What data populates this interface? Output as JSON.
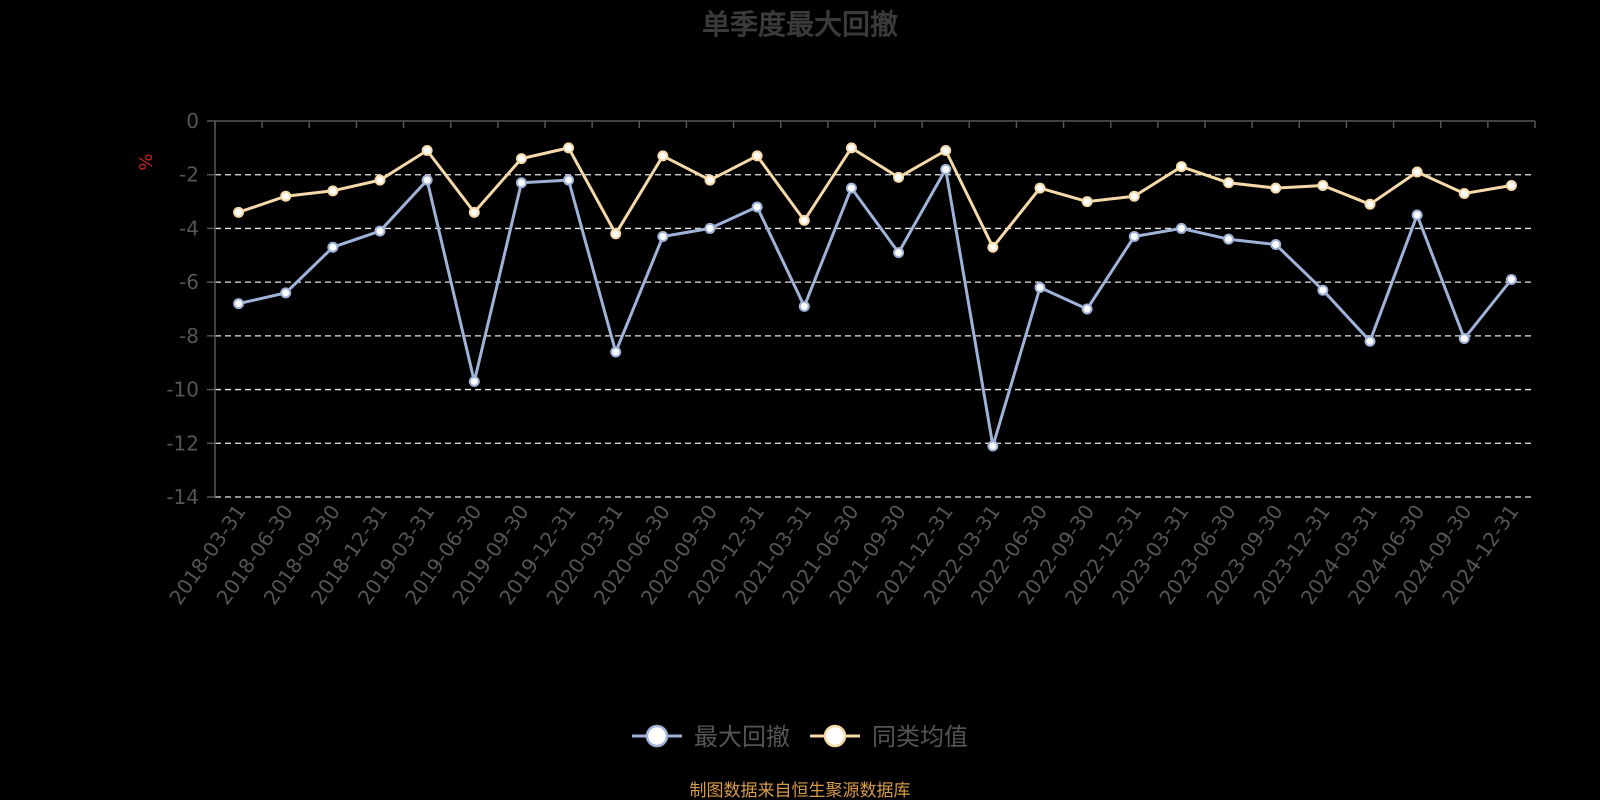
{
  "chart_data": {
    "type": "line",
    "title": "单季度最大回撤",
    "ylabel": "%",
    "ylim": [
      -14,
      0
    ],
    "ytick_step": 2,
    "grid": true,
    "legend_position": "bottom-center",
    "categories": [
      "2018-03-31",
      "2018-06-30",
      "2018-09-30",
      "2018-12-31",
      "2019-03-31",
      "2019-06-30",
      "2019-09-30",
      "2019-12-31",
      "2020-03-31",
      "2020-06-30",
      "2020-09-30",
      "2020-12-31",
      "2021-03-31",
      "2021-06-30",
      "2021-09-30",
      "2021-12-31",
      "2022-03-31",
      "2022-06-30",
      "2022-09-30",
      "2022-12-31",
      "2023-03-31",
      "2023-06-30",
      "2023-09-30",
      "2023-12-31",
      "2024-03-31",
      "2024-06-30",
      "2024-09-30",
      "2024-12-31"
    ],
    "series": [
      {
        "name": "最大回撤",
        "color": "#9fb3d8",
        "values": [
          -6.8,
          -6.4,
          -4.7,
          -4.1,
          -2.2,
          -9.7,
          -2.3,
          -2.2,
          -8.6,
          -4.3,
          -4.0,
          -3.2,
          -6.9,
          -2.5,
          -4.9,
          -1.8,
          -12.1,
          -6.2,
          -7.0,
          -4.3,
          -4.0,
          -4.4,
          -4.6,
          -6.3,
          -8.2,
          -3.5,
          -8.1,
          -5.9
        ]
      },
      {
        "name": "同类均值",
        "color": "#f5d9a8",
        "values": [
          -3.4,
          -2.8,
          -2.6,
          -2.2,
          -1.1,
          -3.4,
          -1.4,
          -1.0,
          -4.2,
          -1.3,
          -2.2,
          -1.3,
          -3.7,
          -1.0,
          -2.1,
          -1.1,
          -4.7,
          -2.5,
          -3.0,
          -2.8,
          -1.7,
          -2.3,
          -2.5,
          -2.4,
          -3.1,
          -1.9,
          -2.7,
          -2.4
        ]
      }
    ]
  },
  "source_note": "制图数据来自恒生聚源数据库"
}
